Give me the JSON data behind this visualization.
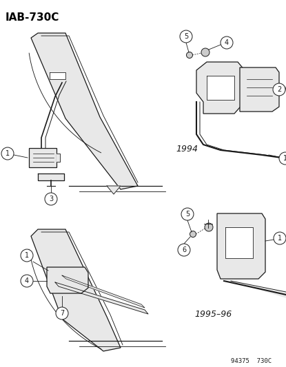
{
  "title": "IAB-730C",
  "subtitle_bottom": "94375  730C",
  "background_color": "#ffffff",
  "label_1994": "1994",
  "label_1995": "1995–96",
  "fig_width": 4.15,
  "fig_height": 5.33,
  "dpi": 100
}
